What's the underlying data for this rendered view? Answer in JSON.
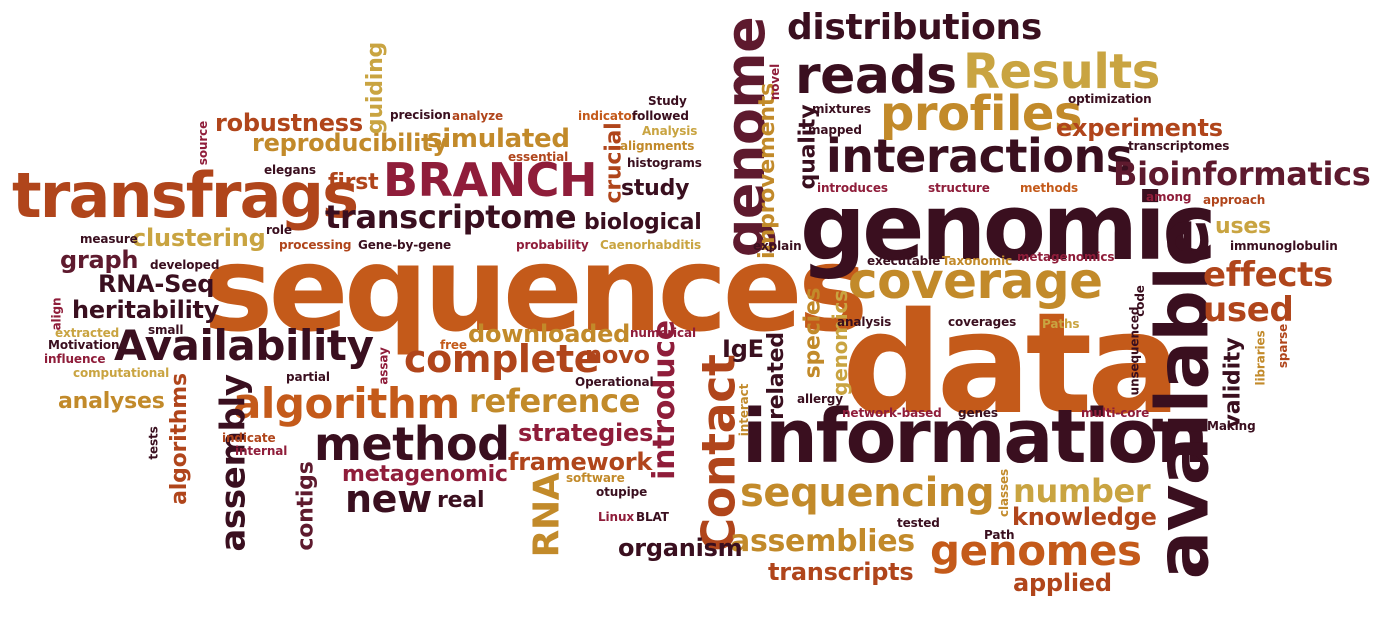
{
  "title": "word cloud",
  "palette": {
    "dark": "#3a0f1f",
    "maroon": "#5e1a2e",
    "crimson": "#8f1d3a",
    "rust": "#b0451b",
    "orange": "#c45a1a",
    "amber": "#c28a2a",
    "gold": "#c9a441"
  },
  "words": [
    {
      "text": "sequences",
      "color": "#c45a1a"
    },
    {
      "text": "data",
      "color": "#c45a1a"
    },
    {
      "text": "information",
      "color": "#3a0f1f"
    },
    {
      "text": "genomic",
      "color": "#3a0f1f"
    },
    {
      "text": "available",
      "color": "#3a0f1f"
    },
    {
      "text": "transfrags",
      "color": "#b0451b"
    },
    {
      "text": "genome",
      "color": "#5e1a2e"
    },
    {
      "text": "BRANCH",
      "color": "#8f1d3a"
    },
    {
      "text": "interactions",
      "color": "#3a0f1f"
    },
    {
      "text": "reads",
      "color": "#3a0f1f"
    },
    {
      "text": "Results",
      "color": "#c9a441"
    },
    {
      "text": "profiles",
      "color": "#c28a2a"
    },
    {
      "text": "coverage",
      "color": "#c28a2a"
    },
    {
      "text": "distributions",
      "color": "#3a0f1f"
    },
    {
      "text": "Availability",
      "color": "#3a0f1f"
    },
    {
      "text": "algorithm",
      "color": "#c45a1a"
    },
    {
      "text": "method",
      "color": "#3a0f1f"
    },
    {
      "text": "transcriptome",
      "color": "#3a0f1f"
    },
    {
      "text": "Contact",
      "color": "#b0451b"
    },
    {
      "text": "sequencing",
      "color": "#c28a2a"
    },
    {
      "text": "genomes",
      "color": "#c45a1a"
    },
    {
      "text": "Bioinformatics",
      "color": "#5e1a2e"
    },
    {
      "text": "complete",
      "color": "#b0451b"
    },
    {
      "text": "reference",
      "color": "#c28a2a"
    },
    {
      "text": "introduce",
      "color": "#8f1d3a"
    },
    {
      "text": "assemblies",
      "color": "#c28a2a"
    },
    {
      "text": "effects",
      "color": "#b0451b"
    },
    {
      "text": "used",
      "color": "#b0451b"
    },
    {
      "text": "number",
      "color": "#c9a441"
    },
    {
      "text": "RNA",
      "color": "#c28a2a"
    },
    {
      "text": "new",
      "color": "#3a0f1f"
    },
    {
      "text": "assembly",
      "color": "#3a0f1f"
    },
    {
      "text": "robustness",
      "color": "#b0451b"
    },
    {
      "text": "reproducibility",
      "color": "#c28a2a"
    },
    {
      "text": "simulated",
      "color": "#c28a2a"
    },
    {
      "text": "experiments",
      "color": "#b0451b"
    },
    {
      "text": "improvements",
      "color": "#c28a2a"
    },
    {
      "text": "quality",
      "color": "#3a0f1f"
    },
    {
      "text": "downloaded",
      "color": "#c28a2a"
    },
    {
      "text": "knowledge",
      "color": "#b0451b"
    },
    {
      "text": "organism",
      "color": "#3a0f1f"
    },
    {
      "text": "transcripts",
      "color": "#b0451b"
    },
    {
      "text": "applied",
      "color": "#b0451b"
    },
    {
      "text": "strategies",
      "color": "#8f1d3a"
    },
    {
      "text": "framework",
      "color": "#b0451b"
    },
    {
      "text": "metagenomic",
      "color": "#8f1d3a"
    },
    {
      "text": "novo",
      "color": "#b0451b"
    },
    {
      "text": "clustering",
      "color": "#c9a441"
    },
    {
      "text": "heritability",
      "color": "#3a0f1f"
    },
    {
      "text": "graph",
      "color": "#5e1a2e"
    },
    {
      "text": "RNA-Seq",
      "color": "#3a0f1f"
    },
    {
      "text": "guiding",
      "color": "#c9a441"
    },
    {
      "text": "first",
      "color": "#b0451b"
    },
    {
      "text": "study",
      "color": "#3a0f1f"
    },
    {
      "text": "biological",
      "color": "#3a0f1f"
    },
    {
      "text": "crucial",
      "color": "#b0451b"
    },
    {
      "text": "species",
      "color": "#c28a2a"
    },
    {
      "text": "genomics",
      "color": "#c9a441"
    },
    {
      "text": "related",
      "color": "#3a0f1f"
    },
    {
      "text": "IgE",
      "color": "#3a0f1f"
    },
    {
      "text": "uses",
      "color": "#c9a441"
    },
    {
      "text": "validity",
      "color": "#3a0f1f"
    },
    {
      "text": "analyses",
      "color": "#c28a2a"
    },
    {
      "text": "algorithms",
      "color": "#b0451b"
    },
    {
      "text": "contigs",
      "color": "#5e1a2e"
    },
    {
      "text": "real",
      "color": "#3a0f1f"
    },
    {
      "text": "precision",
      "color": "#3a0f1f"
    },
    {
      "text": "analyze",
      "color": "#b0451b"
    },
    {
      "text": "indicator",
      "color": "#c45a1a"
    },
    {
      "text": "followed",
      "color": "#3a0f1f"
    },
    {
      "text": "Analysis",
      "color": "#c9a441"
    },
    {
      "text": "alignments",
      "color": "#c28a2a"
    },
    {
      "text": "essential",
      "color": "#b0451b"
    },
    {
      "text": "histograms",
      "color": "#3a0f1f"
    },
    {
      "text": "Study",
      "color": "#3a0f1f"
    },
    {
      "text": "novel",
      "color": "#8f1d3a"
    },
    {
      "text": "mixtures",
      "color": "#3a0f1f"
    },
    {
      "text": "mapped",
      "color": "#3a0f1f"
    },
    {
      "text": "optimization",
      "color": "#3a0f1f"
    },
    {
      "text": "transcriptomes",
      "color": "#3a0f1f"
    },
    {
      "text": "introduces",
      "color": "#8f1d3a"
    },
    {
      "text": "structure",
      "color": "#8f1d3a"
    },
    {
      "text": "methods",
      "color": "#c45a1a"
    },
    {
      "text": "among",
      "color": "#8f1d3a"
    },
    {
      "text": "approach",
      "color": "#b0451b"
    },
    {
      "text": "explain",
      "color": "#3a0f1f"
    },
    {
      "text": "immunoglobulin",
      "color": "#3a0f1f"
    },
    {
      "text": "executable",
      "color": "#3a0f1f"
    },
    {
      "text": "Taxonomic",
      "color": "#c28a2a"
    },
    {
      "text": "metagenomics",
      "color": "#8f1d3a"
    },
    {
      "text": "elegans",
      "color": "#3a0f1f"
    },
    {
      "text": "source",
      "color": "#8f1d3a"
    },
    {
      "text": "role",
      "color": "#3a0f1f"
    },
    {
      "text": "processing",
      "color": "#b0451b"
    },
    {
      "text": "Gene-by-gene",
      "color": "#3a0f1f"
    },
    {
      "text": "probability",
      "color": "#8f1d3a"
    },
    {
      "text": "Caenorhabditis",
      "color": "#c9a441"
    },
    {
      "text": "measure",
      "color": "#3a0f1f"
    },
    {
      "text": "developed",
      "color": "#3a0f1f"
    },
    {
      "text": "align",
      "color": "#8f1d3a"
    },
    {
      "text": "small",
      "color": "#3a0f1f"
    },
    {
      "text": "extracted",
      "color": "#c9a441"
    },
    {
      "text": "Motivation",
      "color": "#3a0f1f"
    },
    {
      "text": "influence",
      "color": "#8f1d3a"
    },
    {
      "text": "computational",
      "color": "#c9a441"
    },
    {
      "text": "partial",
      "color": "#3a0f1f"
    },
    {
      "text": "assay",
      "color": "#8f1d3a"
    },
    {
      "text": "free",
      "color": "#c45a1a"
    },
    {
      "text": "numerical",
      "color": "#8f1d3a"
    },
    {
      "text": "Operational",
      "color": "#3a0f1f"
    },
    {
      "text": "analysis",
      "color": "#3a0f1f"
    },
    {
      "text": "coverages",
      "color": "#3a0f1f"
    },
    {
      "text": "Paths",
      "color": "#c9a441"
    },
    {
      "text": "code",
      "color": "#3a0f1f"
    },
    {
      "text": "libraries",
      "color": "#c28a2a"
    },
    {
      "text": "sparse",
      "color": "#b0451b"
    },
    {
      "text": "unsequenced",
      "color": "#3a0f1f"
    },
    {
      "text": "interact",
      "color": "#c28a2a"
    },
    {
      "text": "allergy",
      "color": "#3a0f1f"
    },
    {
      "text": "network-based",
      "color": "#8f1d3a"
    },
    {
      "text": "genes",
      "color": "#3a0f1f"
    },
    {
      "text": "multi-core",
      "color": "#8f1d3a"
    },
    {
      "text": "Making",
      "color": "#3a0f1f"
    },
    {
      "text": "tests",
      "color": "#3a0f1f"
    },
    {
      "text": "indicate",
      "color": "#b0451b"
    },
    {
      "text": "internal",
      "color": "#8f1d3a"
    },
    {
      "text": "software",
      "color": "#c28a2a"
    },
    {
      "text": "otupipe",
      "color": "#3a0f1f"
    },
    {
      "text": "Linux",
      "color": "#8f1d3a"
    },
    {
      "text": "BLAT",
      "color": "#3a0f1f"
    },
    {
      "text": "classes",
      "color": "#c28a2a"
    },
    {
      "text": "tested",
      "color": "#3a0f1f"
    },
    {
      "text": "Path",
      "color": "#3a0f1f"
    }
  ]
}
